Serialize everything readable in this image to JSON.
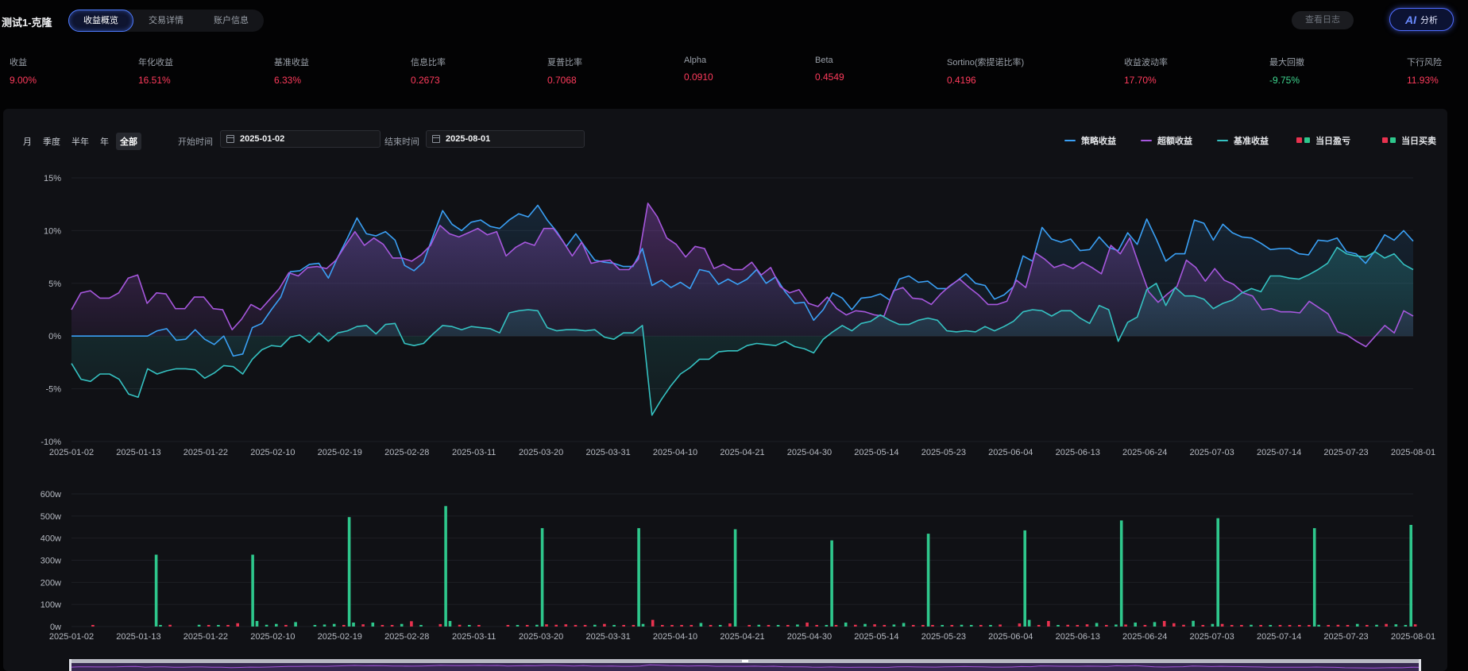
{
  "header": {
    "title": "测试1-克隆",
    "tabs": [
      {
        "label": "收益概览",
        "active": true
      },
      {
        "label": "交易详情",
        "active": false
      },
      {
        "label": "账户信息",
        "active": false
      }
    ],
    "log_button": "查看日志",
    "ai_button": {
      "glyph": "AI",
      "label": "分析"
    }
  },
  "metrics": [
    {
      "label": "收益",
      "value": "9.00%",
      "color": "red"
    },
    {
      "label": "年化收益",
      "value": "16.51%",
      "color": "red"
    },
    {
      "label": "基准收益",
      "value": "6.33%",
      "color": "red"
    },
    {
      "label": "信息比率",
      "value": "0.2673",
      "color": "red"
    },
    {
      "label": "夏普比率",
      "value": "0.7068",
      "color": "red"
    },
    {
      "label": "Alpha",
      "value": "0.0910",
      "color": "red"
    },
    {
      "label": "Beta",
      "value": "0.4549",
      "color": "red"
    },
    {
      "label": "Sortino(索提诺比率)",
      "value": "0.4196",
      "color": "red"
    },
    {
      "label": "收益波动率",
      "value": "17.70%",
      "color": "red"
    },
    {
      "label": "最大回撤",
      "value": "-9.75%",
      "color": "green"
    },
    {
      "label": "下行风险",
      "value": "11.93%",
      "color": "red"
    }
  ],
  "controls": {
    "ranges": [
      {
        "label": "月",
        "active": false
      },
      {
        "label": "季度",
        "active": false
      },
      {
        "label": "半年",
        "active": false
      },
      {
        "label": "年",
        "active": false
      },
      {
        "label": "全部",
        "active": true
      }
    ],
    "start_label": "开始时间",
    "start_value": "2025-01-02",
    "end_label": "结束时间",
    "end_value": "2025-08-01"
  },
  "colors": {
    "strategy": "#3aa0f5",
    "excess": "#a657dd",
    "benchmark": "#35c2c2",
    "up": "#2ec78c",
    "down": "#e8324f"
  },
  "legend": [
    {
      "label": "策略收益",
      "kind": "line",
      "color": "#3aa0f5"
    },
    {
      "label": "超额收益",
      "kind": "line",
      "color": "#a657dd"
    },
    {
      "label": "基准收益",
      "kind": "line",
      "color": "#35c2c2"
    },
    {
      "label": "当日盈亏",
      "kind": "squares",
      "colors": [
        "#e8324f",
        "#2ec78c"
      ]
    },
    {
      "label": "当日买卖",
      "kind": "squares",
      "colors": [
        "#e8324f",
        "#2ec78c"
      ]
    }
  ],
  "chart_data": [
    {
      "type": "line",
      "x_ticks": [
        "2025-01-02",
        "2025-01-13",
        "2025-01-22",
        "2025-02-10",
        "2025-02-19",
        "2025-02-28",
        "2025-03-11",
        "2025-03-20",
        "2025-03-31",
        "2025-04-10",
        "2025-04-21",
        "2025-04-30",
        "2025-05-14",
        "2025-05-23",
        "2025-06-04",
        "2025-06-13",
        "2025-06-24",
        "2025-07-03",
        "2025-07-14",
        "2025-07-23",
        "2025-08-01"
      ],
      "y_ticks": [
        "15%",
        "10%",
        "5%",
        "0%",
        "-5%",
        "-10%"
      ],
      "ylim": [
        -10,
        15
      ],
      "series": [
        {
          "name": "策略收益",
          "color": "#3aa0f5",
          "values": [
            0,
            0,
            0,
            0,
            0,
            0,
            0,
            0,
            0,
            0.5,
            0.7,
            -0.4,
            -0.3,
            0.6,
            -0.3,
            -0.8,
            0,
            -1.9,
            -1.7,
            0.8,
            1.2,
            2.5,
            3.7,
            6.1,
            6.2,
            6.8,
            6.9,
            5.5,
            7.5,
            9.3,
            11.2,
            9.7,
            9.5,
            9.9,
            9.1,
            6.7,
            6.2,
            7,
            9.5,
            11.9,
            10.6,
            10,
            10.8,
            11,
            10.4,
            10.2,
            11,
            11.6,
            11.3,
            12.4,
            11,
            9.9,
            8.5,
            9.7,
            8.4,
            7.2,
            7,
            6.9,
            6.6,
            6.6,
            8.3,
            4.8,
            5.3,
            4.6,
            5.1,
            4.5,
            6.3,
            6.1,
            4.9,
            5.4,
            4.9,
            5.4,
            6.3,
            5,
            5.6,
            4.2,
            3.1,
            3.2,
            1.5,
            2.5,
            4.1,
            3.6,
            2.5,
            3.6,
            3.7,
            4,
            3.4,
            5.4,
            5.7,
            5.1,
            5.2,
            4.5,
            4.5,
            5.2,
            5.9,
            5,
            4.8,
            3.5,
            3.9,
            4.7,
            7.6,
            7.1,
            10.3,
            9.2,
            8.9,
            9.2,
            8.1,
            8.2,
            9.4,
            8.4,
            8.1,
            9.8,
            8.7,
            11.1,
            9.2,
            7.1,
            7.8,
            7.8,
            11,
            10.7,
            9.1,
            10.6,
            9.8,
            9.4,
            9.3,
            8.8,
            8.2,
            8.3,
            8.3,
            7.8,
            7.7,
            9.1,
            9,
            9.3,
            8,
            7.8,
            6.9,
            8.1,
            9.6,
            9.1,
            10,
            9
          ]
        },
        {
          "name": "超额收益",
          "color": "#a657dd",
          "values": [
            2.5,
            4.1,
            4.3,
            3.6,
            3.6,
            4.1,
            5.5,
            5.8,
            3.1,
            4.1,
            4,
            2.6,
            2.6,
            3.7,
            3.7,
            2.6,
            2.5,
            0.6,
            1.6,
            3,
            2.5,
            3.5,
            4.5,
            6,
            5.7,
            6.5,
            6.6,
            6.4,
            7.2,
            8.6,
            9.9,
            8.6,
            9.3,
            8.7,
            7.4,
            7.4,
            7.1,
            7.7,
            8.6,
            10.5,
            9.7,
            9.4,
            9.8,
            10.2,
            9.6,
            9.9,
            7.6,
            8.4,
            8.9,
            8.6,
            10.2,
            10.2,
            9,
            7.6,
            8.9,
            6.9,
            7.1,
            7.2,
            6.3,
            6.3,
            7.3,
            12.6,
            11.3,
            9.3,
            8.7,
            7.5,
            8.5,
            8.3,
            6.4,
            6.8,
            6.3,
            6.3,
            7,
            5.8,
            6.5,
            4.7,
            4.1,
            4.4,
            3.1,
            2.8,
            3.7,
            2.6,
            2,
            2.4,
            2.3,
            2,
            1.9,
            4.3,
            4.6,
            3.6,
            3.5,
            3,
            4,
            4.8,
            5.4,
            4.6,
            3.9,
            3,
            3,
            3.3,
            5.3,
            4.6,
            7.9,
            7.3,
            6.5,
            6.8,
            6.4,
            7,
            6.5,
            5.9,
            8.6,
            7.8,
            9.3,
            6.7,
            4.2,
            3.2,
            4,
            4.7,
            7.2,
            6.5,
            5.2,
            6.4,
            5.3,
            4.9,
            4.1,
            3.8,
            2.5,
            2.6,
            2.3,
            2.3,
            2.2,
            3.3,
            2.7,
            2.1,
            0.4,
            0.1,
            -0.5,
            -1,
            0,
            1,
            0.3,
            2.4,
            1.9
          ]
        },
        {
          "name": "基准收益",
          "color": "#35c2c2",
          "values": [
            -2.6,
            -4.1,
            -4.3,
            -3.6,
            -3.6,
            -4.1,
            -5.5,
            -5.8,
            -3.1,
            -3.6,
            -3.3,
            -3.1,
            -3.1,
            -3.2,
            -4,
            -3.5,
            -2.8,
            -2.9,
            -3.6,
            -2.2,
            -1.3,
            -0.9,
            -1,
            -0.1,
            0.1,
            -0.6,
            0.3,
            -0.5,
            0.3,
            0.5,
            0.9,
            1,
            0.2,
            1.1,
            1.2,
            -0.7,
            -0.9,
            -0.7,
            0.2,
            1,
            0.9,
            0.6,
            0.9,
            0.8,
            0.7,
            0.3,
            2.2,
            2.4,
            2.5,
            2.4,
            0.8,
            0.5,
            0.6,
            0.6,
            0.5,
            0.6,
            -0.1,
            -0.3,
            0.3,
            0.3,
            1,
            -7.5,
            -6,
            -4.7,
            -3.6,
            -3,
            -2.2,
            -2.2,
            -1.5,
            -1.4,
            -1.4,
            -0.9,
            -0.7,
            -0.8,
            -0.9,
            -0.5,
            -1,
            -1.2,
            -1.6,
            -0.3,
            0.4,
            1,
            0.5,
            1.2,
            1.4,
            2,
            1.5,
            1.1,
            1.1,
            1.5,
            1.7,
            1.5,
            0.5,
            0.4,
            0.5,
            0.4,
            0.9,
            0.5,
            0.9,
            1.4,
            2.3,
            2.5,
            2.4,
            1.9,
            2.4,
            2.4,
            1.7,
            1.2,
            2.9,
            2.5,
            -0.5,
            1.3,
            1.8,
            4.4,
            5,
            2.9,
            4.6,
            3.8,
            3.8,
            3.5,
            2.6,
            3.1,
            3.4,
            4.1,
            4.5,
            4.2,
            5.7,
            5.7,
            5.5,
            5.4,
            5.8,
            6.3,
            6.9,
            8.4,
            7.8,
            7.6,
            7.5,
            8,
            7.4,
            7.8,
            6.8,
            6.3
          ]
        }
      ]
    },
    {
      "type": "bar",
      "x_ticks": [
        "2025-01-02",
        "2025-01-13",
        "2025-01-22",
        "2025-02-10",
        "2025-02-19",
        "2025-02-28",
        "2025-03-11",
        "2025-03-20",
        "2025-03-31",
        "2025-04-10",
        "2025-04-21",
        "2025-04-30",
        "2025-05-14",
        "2025-05-23",
        "2025-06-04",
        "2025-06-13",
        "2025-06-24",
        "2025-07-03",
        "2025-07-14",
        "2025-07-23",
        "2025-08-01"
      ],
      "y_ticks": [
        "600w",
        "500w",
        "400w",
        "300w",
        "200w",
        "100w",
        "0w"
      ],
      "ylim": [
        0,
        600
      ],
      "unit": "w",
      "series": [
        {
          "name": "当日买卖",
          "color": "#2ec78c",
          "values": [
            0,
            0,
            0,
            0,
            0,
            0,
            0,
            0,
            0,
            325,
            0,
            0,
            0,
            0,
            0,
            0,
            0,
            0,
            0,
            325,
            0,
            0,
            0,
            0,
            0,
            0,
            0,
            0,
            0,
            495,
            0,
            0,
            0,
            0,
            0,
            0,
            0,
            0,
            0,
            545,
            0,
            0,
            0,
            0,
            0,
            0,
            0,
            0,
            0,
            445,
            0,
            0,
            0,
            0,
            0,
            0,
            0,
            0,
            0,
            445,
            0,
            0,
            0,
            0,
            0,
            0,
            0,
            0,
            0,
            440,
            0,
            0,
            0,
            0,
            0,
            0,
            0,
            0,
            0,
            390,
            0,
            0,
            0,
            0,
            0,
            0,
            0,
            0,
            0,
            420,
            0,
            0,
            0,
            0,
            0,
            0,
            0,
            0,
            0,
            435,
            0,
            0,
            0,
            0,
            0,
            0,
            0,
            0,
            0,
            480,
            0,
            0,
            0,
            0,
            0,
            0,
            0,
            0,
            0,
            490,
            0,
            0,
            0,
            0,
            0,
            0,
            0,
            0,
            0,
            445,
            0,
            0,
            0,
            0,
            0,
            0,
            0,
            0,
            0,
            460
          ]
        },
        {
          "name": "当日盈亏",
          "color": "#2ec78c",
          "values": [
            0,
            0,
            -3,
            0,
            0,
            0,
            0,
            0,
            0,
            4,
            -8,
            0,
            0,
            8,
            -7,
            6,
            -6,
            -15,
            0,
            25,
            8,
            12,
            -4,
            20,
            0,
            5,
            9,
            12,
            -5,
            18,
            -10,
            18,
            -6,
            -4,
            12,
            -24,
            5,
            0,
            -11,
            25,
            -8,
            6,
            -3,
            0,
            0,
            -3,
            6,
            -5,
            8,
            -10,
            -8,
            -10,
            -5,
            -5,
            8,
            -12,
            6,
            -6,
            -4,
            12,
            -30,
            -6,
            -5,
            -3,
            -6,
            16,
            -4,
            5,
            -14,
            0,
            -4,
            8,
            -7,
            5,
            -3,
            9,
            -18,
            -6,
            5,
            -6,
            18,
            -8,
            12,
            -10,
            -6,
            9,
            16,
            -6,
            -4,
            -6,
            5,
            -4,
            8,
            4,
            -4,
            7,
            -9,
            0,
            -14,
            30,
            -6,
            -25,
            5,
            -8,
            -6,
            -10,
            16,
            -7,
            9,
            -9,
            18,
            -6,
            20,
            -25,
            -15,
            -8,
            26,
            -4,
            12,
            -12,
            -4,
            -6,
            8,
            -4,
            5,
            -6,
            -6,
            -4,
            -4,
            8,
            -6,
            -8,
            -5,
            12,
            -4,
            8,
            -12,
            10,
            6,
            -10,
            14,
            -4
          ]
        }
      ]
    }
  ]
}
